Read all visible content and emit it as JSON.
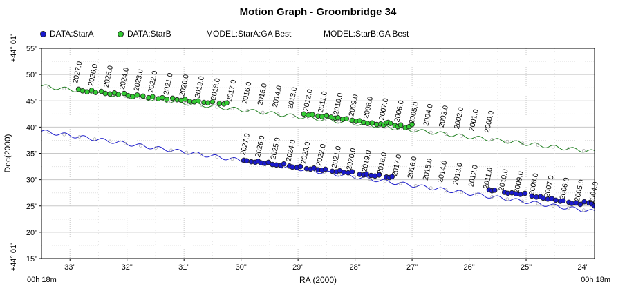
{
  "chart_data": {
    "type": "scatter",
    "title": "Motion Graph - Groombridge 34",
    "xlabel": "RA (2000)",
    "ylabel": "Dec(2000)",
    "x_base_label": "00h 18m",
    "y_base_label": "+44° 01'",
    "x_axis_reversed": true,
    "xlim": [
      33.5,
      23.8
    ],
    "ylim": [
      15,
      55
    ],
    "x_ticks": [
      {
        "value": 33,
        "label": "33\""
      },
      {
        "value": 32,
        "label": "32\""
      },
      {
        "value": 31,
        "label": "31\""
      },
      {
        "value": 30,
        "label": "30\""
      },
      {
        "value": 29,
        "label": "29\""
      },
      {
        "value": 28,
        "label": "28\""
      },
      {
        "value": 27,
        "label": "27\""
      },
      {
        "value": 26,
        "label": "26\""
      },
      {
        "value": 25,
        "label": "25\""
      },
      {
        "value": 24,
        "label": "24\""
      }
    ],
    "y_ticks": [
      {
        "value": 15,
        "label": "15\""
      },
      {
        "value": 20,
        "label": "20\""
      },
      {
        "value": 25,
        "label": "25\""
      },
      {
        "value": 30,
        "label": "30\""
      },
      {
        "value": 35,
        "label": "35\""
      },
      {
        "value": 40,
        "label": "40\""
      },
      {
        "value": 45,
        "label": "45\""
      },
      {
        "value": 50,
        "label": "50\""
      },
      {
        "value": 55,
        "label": "55\""
      }
    ],
    "grid": true,
    "legend_position": "top-left",
    "colors": {
      "starA_fill": "#1a1acc",
      "starB_fill": "#33cc33",
      "modelA_line": "#2020cc",
      "modelB_line": "#208020",
      "grid": "#c8c8c8"
    },
    "series": [
      {
        "name": "DATA:StarA",
        "kind": "points",
        "color": "#1a1acc",
        "points": [
          [
            29.95,
            33.7
          ],
          [
            29.9,
            33.6
          ],
          [
            29.82,
            33.4
          ],
          [
            29.75,
            33.3
          ],
          [
            29.7,
            33.5
          ],
          [
            29.65,
            33.2
          ],
          [
            29.58,
            33.1
          ],
          [
            29.52,
            33.3
          ],
          [
            29.45,
            32.9
          ],
          [
            29.38,
            32.8
          ],
          [
            29.3,
            32.7
          ],
          [
            29.25,
            33.0
          ],
          [
            29.15,
            32.6
          ],
          [
            29.1,
            32.4
          ],
          [
            29.02,
            32.3
          ],
          [
            28.96,
            32.5
          ],
          [
            28.85,
            32.1
          ],
          [
            28.78,
            32.0
          ],
          [
            28.72,
            32.2
          ],
          [
            28.65,
            31.9
          ],
          [
            28.58,
            31.8
          ],
          [
            28.52,
            32.0
          ],
          [
            28.4,
            31.6
          ],
          [
            28.33,
            31.5
          ],
          [
            28.27,
            31.7
          ],
          [
            28.2,
            31.4
          ],
          [
            28.12,
            31.3
          ],
          [
            28.05,
            31.5
          ],
          [
            27.92,
            31.0
          ],
          [
            27.85,
            30.9
          ],
          [
            27.8,
            31.1
          ],
          [
            27.72,
            30.8
          ],
          [
            27.65,
            30.7
          ],
          [
            27.58,
            30.9
          ],
          [
            27.45,
            30.5
          ],
          [
            27.4,
            30.4
          ],
          [
            27.35,
            30.6
          ],
          [
            25.65,
            28.1
          ],
          [
            25.6,
            27.9
          ],
          [
            25.55,
            28.0
          ],
          [
            25.38,
            27.6
          ],
          [
            25.32,
            27.4
          ],
          [
            25.25,
            27.5
          ],
          [
            25.18,
            27.3
          ],
          [
            25.1,
            27.2
          ],
          [
            25.02,
            27.4
          ],
          [
            24.9,
            26.9
          ],
          [
            24.82,
            26.7
          ],
          [
            24.75,
            26.8
          ],
          [
            24.7,
            26.5
          ],
          [
            24.62,
            26.3
          ],
          [
            24.55,
            26.4
          ],
          [
            24.48,
            26.1
          ],
          [
            24.4,
            25.9
          ],
          [
            24.35,
            26.0
          ],
          [
            24.25,
            25.7
          ],
          [
            24.2,
            25.5
          ],
          [
            24.12,
            25.6
          ],
          [
            24.05,
            25.3
          ],
          [
            23.98,
            25.8
          ],
          [
            23.9,
            25.6
          ],
          [
            23.85,
            25.4
          ],
          [
            23.8,
            25.0
          ],
          [
            23.75,
            25.2
          ],
          [
            23.68,
            24.8
          ],
          [
            23.62,
            25.1
          ],
          [
            23.55,
            25.2
          ],
          [
            23.5,
            24.9
          ]
        ]
      },
      {
        "name": "DATA:StarB",
        "kind": "points",
        "color": "#33cc33",
        "points": [
          [
            32.85,
            47.2
          ],
          [
            32.78,
            46.9
          ],
          [
            32.7,
            46.7
          ],
          [
            32.62,
            47.0
          ],
          [
            32.55,
            46.6
          ],
          [
            32.45,
            46.8
          ],
          [
            32.38,
            46.4
          ],
          [
            32.3,
            46.3
          ],
          [
            32.22,
            46.5
          ],
          [
            32.15,
            46.2
          ],
          [
            32.05,
            46.4
          ],
          [
            31.98,
            46.0
          ],
          [
            31.9,
            45.8
          ],
          [
            31.82,
            46.1
          ],
          [
            31.72,
            45.9
          ],
          [
            31.62,
            45.6
          ],
          [
            31.55,
            45.8
          ],
          [
            31.45,
            45.4
          ],
          [
            31.38,
            45.6
          ],
          [
            31.3,
            45.3
          ],
          [
            31.2,
            45.5
          ],
          [
            31.12,
            45.2
          ],
          [
            31.05,
            45.1
          ],
          [
            30.98,
            45.3
          ],
          [
            30.9,
            44.9
          ],
          [
            30.82,
            44.8
          ],
          [
            30.75,
            45.0
          ],
          [
            30.65,
            44.7
          ],
          [
            30.58,
            44.6
          ],
          [
            30.5,
            44.8
          ],
          [
            30.38,
            44.5
          ],
          [
            30.3,
            44.4
          ],
          [
            30.25,
            44.6
          ],
          [
            28.9,
            42.5
          ],
          [
            28.82,
            42.3
          ],
          [
            28.75,
            42.4
          ],
          [
            28.65,
            42.1
          ],
          [
            28.58,
            42.0
          ],
          [
            28.5,
            42.2
          ],
          [
            28.42,
            41.9
          ],
          [
            28.35,
            41.7
          ],
          [
            28.3,
            41.8
          ],
          [
            28.22,
            41.5
          ],
          [
            28.15,
            41.6
          ],
          [
            28.05,
            41.3
          ],
          [
            27.98,
            41.1
          ],
          [
            27.92,
            41.2
          ],
          [
            27.85,
            40.9
          ],
          [
            27.78,
            40.7
          ],
          [
            27.7,
            40.8
          ],
          [
            27.62,
            40.5
          ],
          [
            27.55,
            40.6
          ],
          [
            27.5,
            40.4
          ],
          [
            27.45,
            40.8
          ],
          [
            27.42,
            40.9
          ],
          [
            27.38,
            40.7
          ],
          [
            27.3,
            40.3
          ],
          [
            27.25,
            40.1
          ],
          [
            27.2,
            40.4
          ],
          [
            27.12,
            39.9
          ],
          [
            27.05,
            40.1
          ],
          [
            27.0,
            40.5
          ]
        ]
      },
      {
        "name": "MODEL:StarA:GA Best",
        "kind": "line",
        "color": "#2020cc",
        "linear": {
          "x0": 33.5,
          "y0": 39.2,
          "x1": 23.8,
          "y1": 23.9
        },
        "wiggle_amp": 0.35,
        "wiggle_period": 0.33
      },
      {
        "name": "MODEL:StarB:GA Best",
        "kind": "line",
        "color": "#208020",
        "linear": {
          "x0": 33.5,
          "y0": 47.8,
          "x1": 23.8,
          "y1": 35.3
        },
        "wiggle_amp": 0.35,
        "wiggle_period": 0.33
      }
    ],
    "annotations": [
      {
        "x": 32.87,
        "y": 47.5,
        "label": "2027.0"
      },
      {
        "x": 32.6,
        "y": 47.0,
        "label": "2026.0"
      },
      {
        "x": 32.33,
        "y": 46.7,
        "label": "2025.0"
      },
      {
        "x": 32.05,
        "y": 46.3,
        "label": "2024.0"
      },
      {
        "x": 31.8,
        "y": 46.0,
        "label": "2023.0"
      },
      {
        "x": 31.55,
        "y": 45.7,
        "label": "2022.0"
      },
      {
        "x": 31.28,
        "y": 45.3,
        "label": "2021.0"
      },
      {
        "x": 31.0,
        "y": 45.0,
        "label": "2020.0"
      },
      {
        "x": 30.73,
        "y": 44.7,
        "label": "2019.0"
      },
      {
        "x": 30.45,
        "y": 44.3,
        "label": "2018.0"
      },
      {
        "x": 30.17,
        "y": 44.0,
        "label": "2017.0"
      },
      {
        "x": 29.9,
        "y": 43.6,
        "label": "2016.0"
      },
      {
        "x": 29.63,
        "y": 43.3,
        "label": "2015.0"
      },
      {
        "x": 29.37,
        "y": 42.9,
        "label": "2014.0"
      },
      {
        "x": 29.1,
        "y": 42.6,
        "label": "2013.0"
      },
      {
        "x": 28.83,
        "y": 42.2,
        "label": "2012.0"
      },
      {
        "x": 28.57,
        "y": 41.9,
        "label": "2011.0"
      },
      {
        "x": 28.3,
        "y": 41.5,
        "label": "2010.0"
      },
      {
        "x": 28.03,
        "y": 41.2,
        "label": "2009.0"
      },
      {
        "x": 27.77,
        "y": 40.8,
        "label": "2008.0"
      },
      {
        "x": 27.5,
        "y": 40.5,
        "label": "2007.0"
      },
      {
        "x": 27.23,
        "y": 40.1,
        "label": "2006.0"
      },
      {
        "x": 26.97,
        "y": 39.8,
        "label": "2005.0"
      },
      {
        "x": 26.72,
        "y": 39.4,
        "label": "2004.0"
      },
      {
        "x": 26.45,
        "y": 39.1,
        "label": "2003.0"
      },
      {
        "x": 26.18,
        "y": 38.8,
        "label": "2002.0"
      },
      {
        "x": 25.92,
        "y": 38.4,
        "label": "2001.0"
      },
      {
        "x": 25.65,
        "y": 38.1,
        "label": "2000.0"
      },
      {
        "x": 29.93,
        "y": 33.8,
        "label": "2027.0"
      },
      {
        "x": 29.67,
        "y": 33.4,
        "label": "2026.0"
      },
      {
        "x": 29.4,
        "y": 33.0,
        "label": "2025.0"
      },
      {
        "x": 29.13,
        "y": 32.6,
        "label": "2024.0"
      },
      {
        "x": 28.87,
        "y": 32.2,
        "label": "2023.0"
      },
      {
        "x": 28.6,
        "y": 31.8,
        "label": "2022.0"
      },
      {
        "x": 28.33,
        "y": 31.4,
        "label": "2021.0"
      },
      {
        "x": 28.07,
        "y": 31.0,
        "label": "2020.0"
      },
      {
        "x": 27.8,
        "y": 30.6,
        "label": "2019.0"
      },
      {
        "x": 27.53,
        "y": 30.2,
        "label": "2018.0"
      },
      {
        "x": 27.27,
        "y": 29.8,
        "label": "2017.0"
      },
      {
        "x": 27.0,
        "y": 29.4,
        "label": "2016.0"
      },
      {
        "x": 26.73,
        "y": 29.0,
        "label": "2015.0"
      },
      {
        "x": 26.47,
        "y": 28.6,
        "label": "2014.0"
      },
      {
        "x": 26.2,
        "y": 28.2,
        "label": "2013.0"
      },
      {
        "x": 25.93,
        "y": 27.8,
        "label": "2012.0"
      },
      {
        "x": 25.67,
        "y": 27.4,
        "label": "2011.0"
      },
      {
        "x": 25.4,
        "y": 27.0,
        "label": "2010.0"
      },
      {
        "x": 25.13,
        "y": 26.6,
        "label": "2009.0"
      },
      {
        "x": 24.87,
        "y": 26.2,
        "label": "2008.0"
      },
      {
        "x": 24.6,
        "y": 25.8,
        "label": "2007.0"
      },
      {
        "x": 24.33,
        "y": 25.4,
        "label": "2006.0"
      },
      {
        "x": 24.07,
        "y": 25.0,
        "label": "2005.0"
      },
      {
        "x": 23.82,
        "y": 24.6,
        "label": "2004.0"
      }
    ]
  }
}
